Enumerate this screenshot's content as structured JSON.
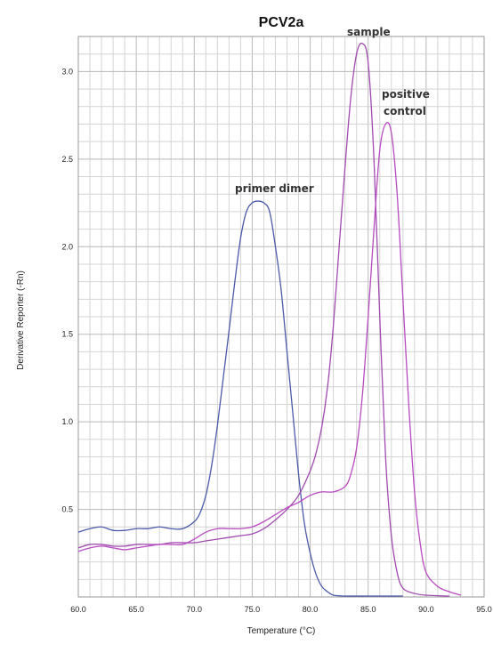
{
  "chart_data": {
    "type": "line",
    "title": "PCV2a",
    "xlabel": "Temperature (°C)",
    "ylabel": "Derivative Reporter (-Rn)",
    "xlim": [
      60.0,
      95.0
    ],
    "ylim": [
      0.0,
      3.2
    ],
    "x_ticks": [
      "60.0",
      "65.0",
      "70.0",
      "75.0",
      "80.0",
      "85.0",
      "90.0",
      "95.0"
    ],
    "y_ticks": [
      "0.5",
      "1.0",
      "1.5",
      "2.0",
      "2.5",
      "3.0"
    ],
    "grid": true,
    "annotations": [
      "primer dimer",
      "sample",
      "positive",
      "control"
    ],
    "series": [
      {
        "color": "#4a5aa8",
        "x": [
          60,
          61,
          62,
          63,
          64,
          65,
          66,
          67,
          68,
          69,
          70,
          70.5,
          71,
          71.5,
          72,
          72.5,
          73,
          73.5,
          74,
          74.5,
          75,
          75.5,
          76,
          76.5,
          77,
          77.5,
          78,
          78.5,
          79,
          79.5,
          80,
          80.5,
          81,
          81.5,
          82,
          83,
          85,
          88
        ],
        "y": [
          0.37,
          0.39,
          0.4,
          0.38,
          0.38,
          0.39,
          0.39,
          0.4,
          0.39,
          0.39,
          0.43,
          0.48,
          0.58,
          0.75,
          0.98,
          1.25,
          1.52,
          1.8,
          2.05,
          2.2,
          2.25,
          2.26,
          2.25,
          2.2,
          2.0,
          1.75,
          1.4,
          1.05,
          0.7,
          0.42,
          0.25,
          0.13,
          0.06,
          0.03,
          0.01,
          0.005,
          0.005,
          0.005
        ]
      },
      {
        "color": "#a04ab0",
        "x": [
          60,
          61,
          62,
          63,
          64,
          65,
          66,
          67,
          68,
          69,
          70,
          71,
          72,
          73,
          74,
          75,
          76,
          77,
          78,
          79,
          80,
          80.5,
          81,
          81.5,
          82,
          82.5,
          83,
          83.5,
          84,
          84.5,
          85,
          85.5,
          86,
          86.5,
          87,
          87.5,
          88,
          89,
          90,
          92
        ],
        "y": [
          0.28,
          0.3,
          0.3,
          0.29,
          0.29,
          0.3,
          0.3,
          0.3,
          0.31,
          0.31,
          0.31,
          0.32,
          0.33,
          0.34,
          0.35,
          0.36,
          0.39,
          0.44,
          0.5,
          0.58,
          0.72,
          0.82,
          0.97,
          1.2,
          1.55,
          2.0,
          2.45,
          2.85,
          3.1,
          3.16,
          3.05,
          2.5,
          1.6,
          0.8,
          0.35,
          0.14,
          0.05,
          0.02,
          0.01,
          0.005
        ]
      },
      {
        "color": "#b84ac0",
        "x": [
          60,
          61,
          62,
          63,
          64,
          65,
          66,
          67,
          68,
          69,
          70,
          71,
          72,
          73,
          74,
          75,
          76,
          77,
          78,
          79,
          80,
          81,
          82,
          83,
          83.5,
          84,
          84.5,
          85,
          85.5,
          86,
          86.5,
          87,
          87.5,
          88,
          88.5,
          89,
          89.5,
          90,
          91,
          92,
          93
        ],
        "y": [
          0.26,
          0.28,
          0.29,
          0.28,
          0.27,
          0.28,
          0.29,
          0.3,
          0.3,
          0.3,
          0.33,
          0.37,
          0.39,
          0.39,
          0.39,
          0.4,
          0.43,
          0.47,
          0.51,
          0.54,
          0.58,
          0.6,
          0.6,
          0.63,
          0.7,
          0.85,
          1.15,
          1.6,
          2.1,
          2.55,
          2.7,
          2.65,
          2.3,
          1.7,
          1.1,
          0.6,
          0.3,
          0.14,
          0.06,
          0.03,
          0.01
        ]
      }
    ]
  }
}
